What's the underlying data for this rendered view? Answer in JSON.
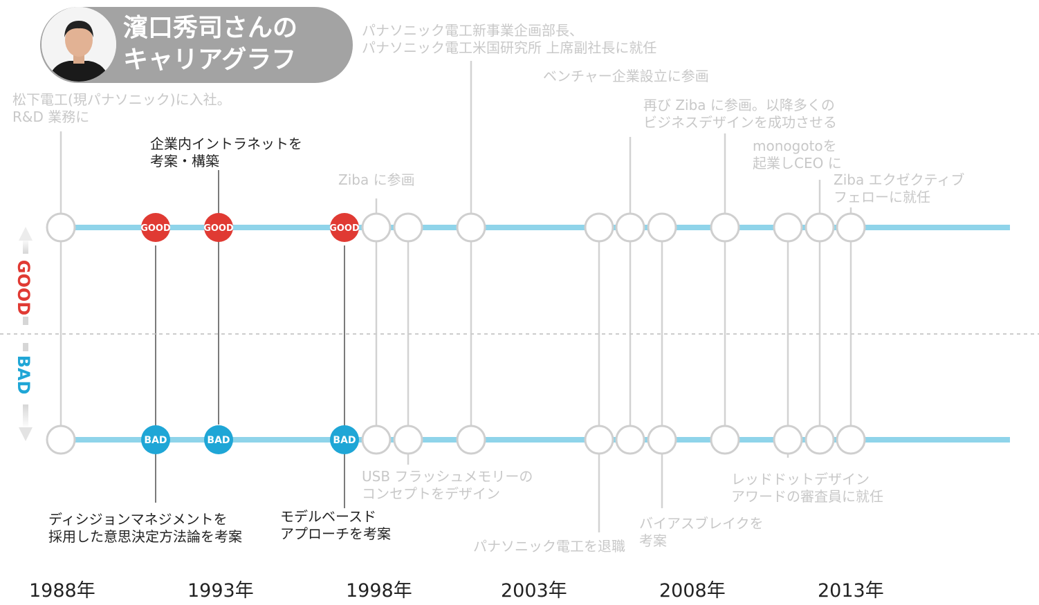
{
  "header": {
    "title_line1": "濱口秀司さんの",
    "title_line2": "キャリアグラフ"
  },
  "legend": {
    "good": "GOOD",
    "bad": "BAD"
  },
  "node_labels": {
    "good": "GOOD",
    "bad": "BAD"
  },
  "colors": {
    "line": "#8fd4ea",
    "good": "#e03a33",
    "bad": "#1fa6d6",
    "inactive": "#c8c8c8",
    "text": "#222222"
  },
  "years": [
    "1988年",
    "1993年",
    "1998年",
    "2003年",
    "2008年",
    "2013年"
  ],
  "events_top": [
    {
      "lines": [
        "松下電工(現パナソニック)に入社。",
        "R&D 業務に"
      ],
      "active": false
    },
    {
      "lines": [
        "企業内イントラネットを",
        "考案・構築"
      ],
      "active": true
    },
    {
      "lines": [
        "Ziba に参画"
      ],
      "active": false
    },
    {
      "lines": [
        "パナソニック電工新事業企画部長、",
        "パナソニック電工米国研究所 上席副社長に就任"
      ],
      "active": false
    },
    {
      "lines": [
        "ベンチャー企業設立に参画"
      ],
      "active": false
    },
    {
      "lines": [
        "再び Ziba に参画。以降多くの",
        "ビジネスデザインを成功させる"
      ],
      "active": false
    },
    {
      "lines": [
        "monogotoを",
        "起業しCEO に"
      ],
      "active": false
    },
    {
      "lines": [
        "Ziba エクゼクティブ",
        "フェローに就任"
      ],
      "active": false
    }
  ],
  "events_bottom": [
    {
      "lines": [
        "ディシジョンマネジメントを",
        "採用した意思決定方法論を考案"
      ],
      "active": true
    },
    {
      "lines": [
        "モデルベースド",
        "アプローチを考案"
      ],
      "active": true
    },
    {
      "lines": [
        "USB フラッシュメモリーの",
        "コンセプトをデザイン"
      ],
      "active": false
    },
    {
      "lines": [
        "パナソニック電工を退職"
      ],
      "active": false
    },
    {
      "lines": [
        "バイアスブレイクを",
        "考案"
      ],
      "active": false
    },
    {
      "lines": [
        "レッドドットデザイン",
        "アワードの審査員に就任"
      ],
      "active": false
    }
  ]
}
